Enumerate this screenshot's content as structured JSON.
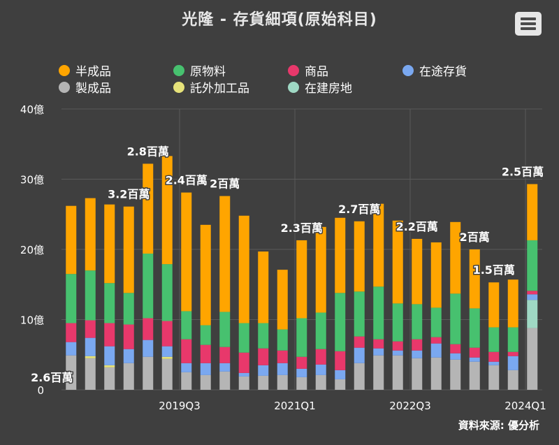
{
  "title": "光隆 - 存貨細項(原始科目)",
  "source": "資料來源: 優分析",
  "menu_icon": "hamburger-menu-icon",
  "chart_data": {
    "type": "bar",
    "stacked": true,
    "title": "光隆 - 存貨細項(原始科目)",
    "ylim": [
      0,
      40
    ],
    "yticks": [
      0,
      10,
      20,
      30,
      40
    ],
    "ytick_labels": [
      "0",
      "10億",
      "20億",
      "30億",
      "40億"
    ],
    "xtick_labels": [
      {
        "index": 7,
        "label": "2019Q3"
      },
      {
        "index": 13,
        "label": "2021Q1"
      },
      {
        "index": 19,
        "label": "2022Q3"
      },
      {
        "index": 25,
        "label": "2024Q1"
      }
    ],
    "legend_position": "top",
    "bar_count": 25,
    "series": [
      {
        "name": "製成品",
        "color": "#b5b5b5",
        "values": [
          4.9,
          4.5,
          3.2,
          3.8,
          4.7,
          4.4,
          2.5,
          2.1,
          2.6,
          1.9,
          2.0,
          2.1,
          1.8,
          2.1,
          1.5,
          3.8,
          4.9,
          4.9,
          4.5,
          4.6,
          4.3,
          4.0,
          3.5,
          2.8,
          8.8
        ]
      },
      {
        "name": "託外加工品",
        "color": "#e6e27a",
        "values": [
          0,
          0.3,
          0.3,
          0,
          0,
          0.3,
          0,
          0,
          0,
          0,
          0,
          0,
          0,
          0,
          0,
          0,
          0,
          0,
          0,
          0,
          0,
          0,
          0,
          0,
          0
        ]
      },
      {
        "name": "在建房地",
        "color": "#9fd8c4",
        "values": [
          0,
          0,
          0,
          0,
          0,
          0,
          0,
          0,
          0,
          0,
          0,
          0,
          0,
          0,
          0,
          0,
          0,
          0,
          0,
          0,
          0,
          0,
          0,
          0,
          4.0
        ]
      },
      {
        "name": "在途存貨",
        "color": "#7aa8f0",
        "values": [
          1.9,
          2.6,
          2.7,
          2.0,
          2.4,
          1.5,
          1.3,
          1.7,
          1.2,
          0.5,
          1.5,
          1.7,
          1.2,
          1.5,
          1.3,
          2.2,
          1.0,
          0.7,
          1.1,
          2.0,
          0.9,
          0.6,
          0.5,
          2.0,
          0.8
        ]
      },
      {
        "name": "商品",
        "color": "#e8386b",
        "values": [
          2.7,
          2.5,
          3.3,
          3.5,
          3.1,
          3.6,
          3.4,
          2.6,
          2.3,
          2.9,
          2.4,
          1.8,
          1.7,
          2.2,
          2.7,
          1.6,
          1.3,
          1.3,
          1.6,
          0.9,
          1.3,
          1.4,
          1.4,
          0.6,
          0.5
        ]
      },
      {
        "name": "原物料",
        "color": "#47c16f",
        "values": [
          7.0,
          7.1,
          5.7,
          4.5,
          9.2,
          8.1,
          4.0,
          2.8,
          5.0,
          4.2,
          3.6,
          3.0,
          5.5,
          5.2,
          8.3,
          6.4,
          7.5,
          5.4,
          5.0,
          4.2,
          7.2,
          5.6,
          3.5,
          3.5,
          7.2
        ]
      },
      {
        "name": "半成品",
        "color": "#ffa500",
        "values": [
          9.7,
          10.3,
          11.2,
          12.3,
          12.8,
          15.4,
          16.9,
          14.3,
          16.5,
          15.3,
          10.2,
          8.5,
          11.1,
          12.2,
          10.7,
          10.0,
          11.8,
          11.8,
          9.3,
          9.3,
          10.2,
          8.4,
          6.4,
          6.8,
          8.0
        ]
      }
    ],
    "data_labels": [
      {
        "index": 0,
        "text": "2.6百萬"
      },
      {
        "index": 4,
        "text": "3.2百萬"
      },
      {
        "index": 5,
        "text": "2.8百萬"
      },
      {
        "index": 7,
        "text": "2.4百萬"
      },
      {
        "index": 9,
        "text": "2百萬"
      },
      {
        "index": 13,
        "text": "2.3百萬"
      },
      {
        "index": 16,
        "text": "2.7百萬"
      },
      {
        "index": 19,
        "text": "2.2百萬"
      },
      {
        "index": 22,
        "text": "2百萬"
      },
      {
        "index": 23,
        "text": "1.5百萬"
      },
      {
        "index": 25,
        "text": "2.5百萬"
      }
    ]
  },
  "legend": [
    {
      "name": "半成品",
      "color": "#ffa500"
    },
    {
      "name": "原物料",
      "color": "#47c16f"
    },
    {
      "name": "商品",
      "color": "#e8386b"
    },
    {
      "name": "在途存貨",
      "color": "#7aa8f0"
    },
    {
      "name": "製成品",
      "color": "#b5b5b5"
    },
    {
      "name": "託外加工品",
      "color": "#e6e27a"
    },
    {
      "name": "在建房地",
      "color": "#9fd8c4"
    }
  ]
}
